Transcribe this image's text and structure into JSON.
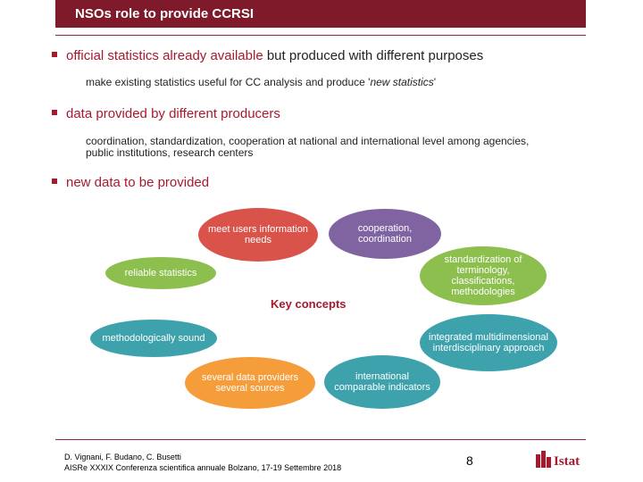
{
  "header": {
    "title": "NSOs role to provide CCRSI"
  },
  "bullets": [
    {
      "bold": "official statistics already available",
      "rest": " but produced with different purposes"
    },
    {
      "bold": "data provided by different producers",
      "rest": ""
    },
    {
      "bold": "new data to be provided",
      "rest": ""
    }
  ],
  "subs": {
    "s1_pre": "make existing statistics useful for CC analysis and produce '",
    "s1_it": "new statistics",
    "s1_post": "'",
    "s2_line1": "coordination, standardization, cooperation at national and international level among agencies,",
    "s2_line2": "public institutions, research centers"
  },
  "diagram": {
    "center": "Key concepts",
    "nodes": {
      "users": "meet users information needs",
      "coop": "cooperation, coordination",
      "standard": "standardization of terminology, classifications, methodologies",
      "reliable": "reliable statistics",
      "integrated": "integrated multidimensional interdisciplinary approach",
      "method": "methodologically sound",
      "providers": "several data providers several sources",
      "indicators": "international comparable indicators"
    },
    "colors": {
      "red": "#d9534a",
      "violet": "#8064a2",
      "green": "#8cbf4e",
      "teal": "#3ea2ad",
      "orange": "#f59d3a"
    }
  },
  "footer": {
    "authors": "D. Vignani, F. Budano, C. Busetti",
    "event": "AISRe XXXIX Conferenza scientifica annuale Bolzano, 17-19 Settembre 2018",
    "page": "8",
    "logo": "Istat"
  }
}
